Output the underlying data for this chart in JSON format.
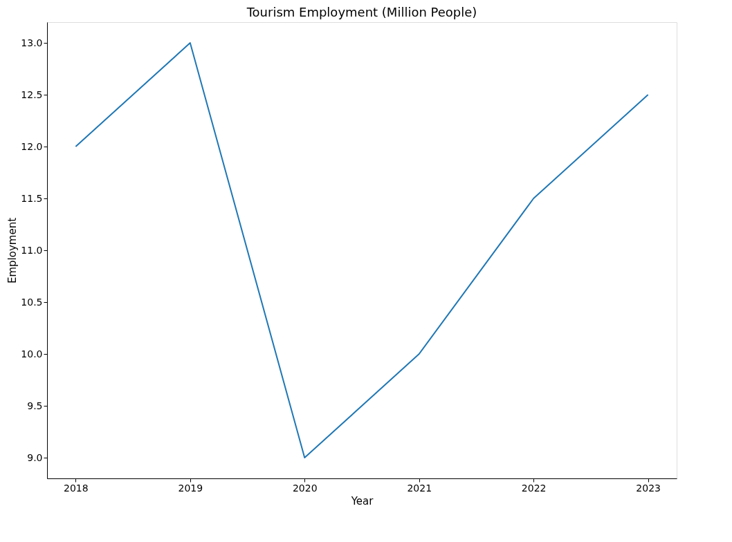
{
  "chart_data": {
    "type": "line",
    "title": "Tourism Employment (Million People)",
    "xlabel": "Year",
    "ylabel": "Employment",
    "x": [
      2018,
      2019,
      2020,
      2021,
      2022,
      2023
    ],
    "series": [
      {
        "color": "#1f77b4",
        "values": [
          12.0,
          13.0,
          9.0,
          10.0,
          11.5,
          12.5
        ]
      }
    ],
    "xlim": [
      2017.75,
      2023.25
    ],
    "xticks": [
      2018,
      2019,
      2020,
      2021,
      2022,
      2023
    ],
    "ylim": [
      8.8,
      13.2
    ],
    "yticks": [
      {
        "value": 9.0,
        "label": "9.0"
      },
      {
        "value": 9.5,
        "label": "9.5"
      },
      {
        "value": 10.0,
        "label": "10.0"
      },
      {
        "value": 10.5,
        "label": "10.5"
      },
      {
        "value": 11.0,
        "label": "11.0"
      },
      {
        "value": 11.5,
        "label": "11.5"
      },
      {
        "value": 12.0,
        "label": "12.0"
      },
      {
        "value": 12.5,
        "label": "12.5"
      },
      {
        "value": 13.0,
        "label": "13.0"
      }
    ],
    "grid": false
  }
}
